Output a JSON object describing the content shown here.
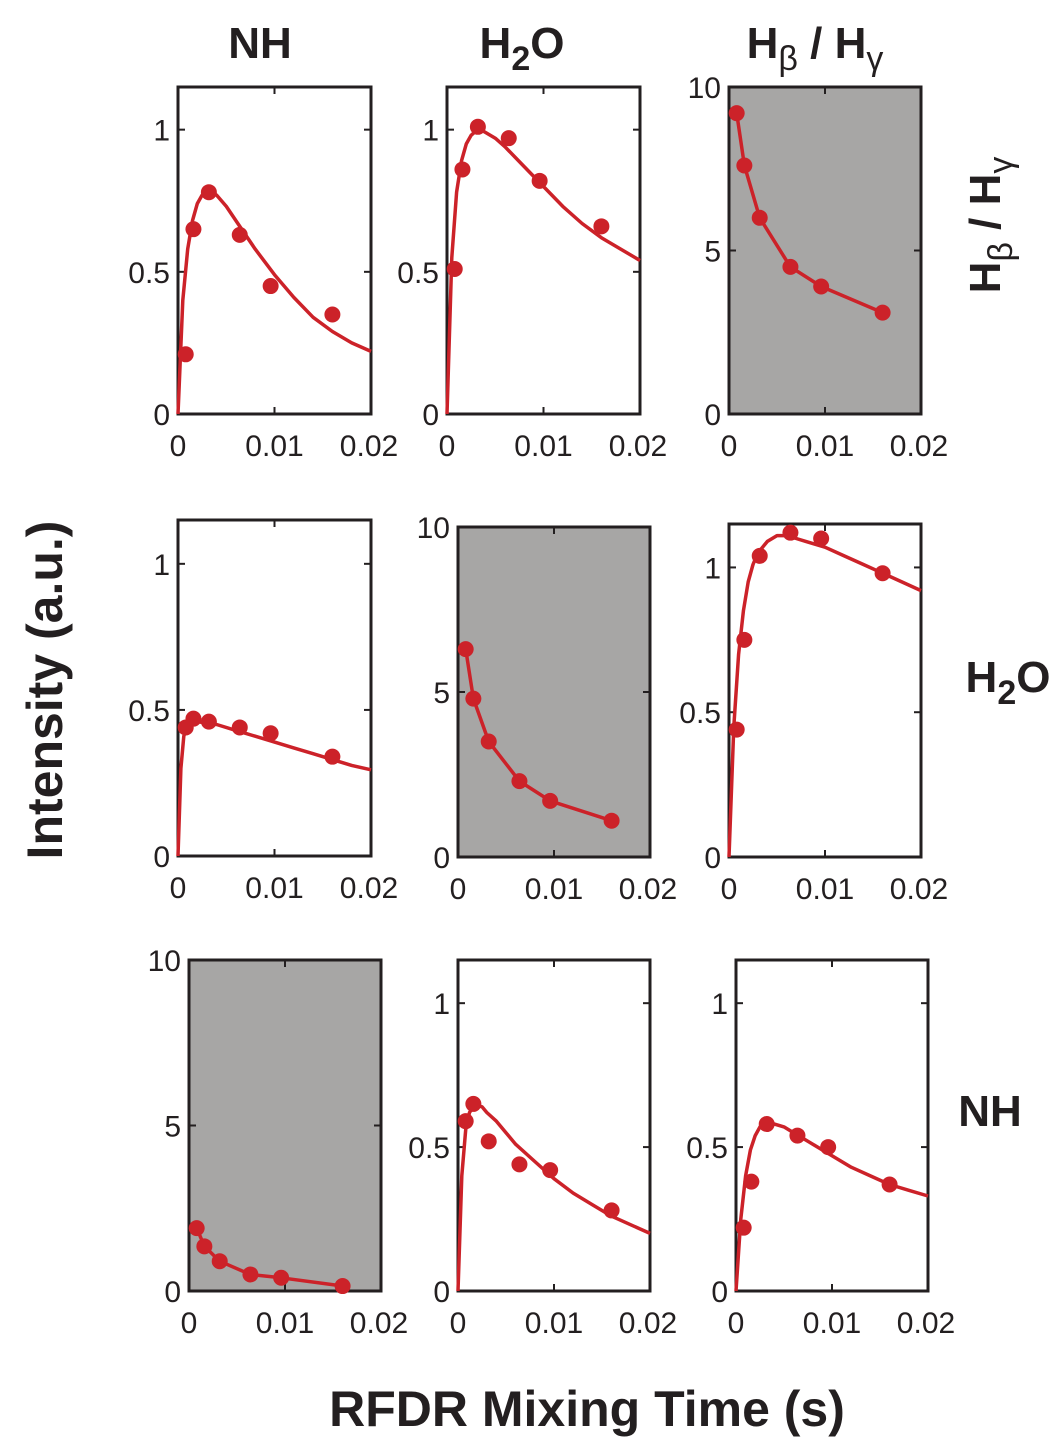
{
  "figure": {
    "xlabel": "RFDR Mixing Time (s)",
    "ylabel": "Intensity (a.u.)",
    "column_headers": [
      {
        "main": "NH",
        "sub": ""
      },
      {
        "main": "H",
        "sub": "2",
        "tail": "O"
      },
      {
        "main": "H",
        "sub": "β",
        "tail": " / H",
        "sub2": "γ"
      }
    ],
    "row_headers": [
      {
        "main": "H",
        "sub": "β",
        "tail": " / H",
        "sub2": "γ"
      },
      {
        "main": "H",
        "sub": "2",
        "tail": "O"
      },
      {
        "main": "NH",
        "sub": ""
      }
    ]
  },
  "colors": {
    "series": "#cc2229",
    "diagonal_fill": "#a7a6a5",
    "axis": "#231f20"
  },
  "chart_data": [
    {
      "row": 0,
      "col": 0,
      "type": "scatter",
      "diagonal": false,
      "xlim": [
        0,
        0.02
      ],
      "ylim": [
        0,
        1.15
      ],
      "xticks": [
        "0",
        "0.01",
        "0.02"
      ],
      "yticks": [
        "0",
        "0.5",
        "1"
      ],
      "x": [
        0.0008,
        0.0016,
        0.0032,
        0.0064,
        0.0096,
        0.016
      ],
      "y": [
        0.21,
        0.65,
        0.78,
        0.63,
        0.45,
        0.35
      ],
      "fit": {
        "x": [
          0,
          0.0005,
          0.001,
          0.0015,
          0.002,
          0.0025,
          0.003,
          0.0035,
          0.004,
          0.005,
          0.006,
          0.008,
          0.01,
          0.012,
          0.014,
          0.016,
          0.018,
          0.02
        ],
        "y": [
          0,
          0.4,
          0.58,
          0.68,
          0.74,
          0.77,
          0.78,
          0.78,
          0.77,
          0.73,
          0.68,
          0.58,
          0.49,
          0.41,
          0.34,
          0.29,
          0.25,
          0.22
        ]
      }
    },
    {
      "row": 0,
      "col": 1,
      "type": "scatter",
      "diagonal": false,
      "xlim": [
        0,
        0.02
      ],
      "ylim": [
        0,
        1.15
      ],
      "xticks": [
        "0",
        "0.01",
        "0.02"
      ],
      "yticks": [
        "0",
        "0.5",
        "1"
      ],
      "x": [
        0.0008,
        0.0016,
        0.0032,
        0.0064,
        0.0096,
        0.016
      ],
      "y": [
        0.51,
        0.86,
        1.01,
        0.97,
        0.82,
        0.66
      ],
      "fit": {
        "x": [
          0,
          0.0005,
          0.001,
          0.0015,
          0.002,
          0.0025,
          0.003,
          0.0035,
          0.004,
          0.005,
          0.006,
          0.008,
          0.01,
          0.012,
          0.014,
          0.016,
          0.018,
          0.02
        ],
        "y": [
          0,
          0.55,
          0.78,
          0.89,
          0.95,
          0.98,
          0.995,
          1.0,
          0.99,
          0.97,
          0.94,
          0.87,
          0.8,
          0.73,
          0.67,
          0.62,
          0.58,
          0.54
        ]
      }
    },
    {
      "row": 0,
      "col": 2,
      "type": "scatter",
      "diagonal": true,
      "xlim": [
        0,
        0.02
      ],
      "ylim": [
        0,
        10
      ],
      "xticks": [
        "0",
        "0.01",
        "0.02"
      ],
      "yticks": [
        "0",
        "5",
        "10"
      ],
      "x": [
        0.0008,
        0.0016,
        0.0032,
        0.0064,
        0.0096,
        0.016
      ],
      "y": [
        9.2,
        7.6,
        6.0,
        4.5,
        3.9,
        3.1
      ],
      "fit": {
        "x": [
          0.0008,
          0.0016,
          0.0032,
          0.0064,
          0.0096,
          0.016
        ],
        "y": [
          9.2,
          7.6,
          6.0,
          4.5,
          3.9,
          3.1
        ]
      }
    },
    {
      "row": 1,
      "col": 0,
      "type": "scatter",
      "diagonal": false,
      "xlim": [
        0,
        0.02
      ],
      "ylim": [
        0,
        1.15
      ],
      "xticks": [
        "0",
        "0.01",
        "0.02"
      ],
      "yticks": [
        "0",
        "0.5",
        "1"
      ],
      "x": [
        0.0008,
        0.0016,
        0.0032,
        0.0064,
        0.0096,
        0.016
      ],
      "y": [
        0.44,
        0.47,
        0.46,
        0.44,
        0.42,
        0.34
      ],
      "fit": {
        "x": [
          0,
          0.0003,
          0.0006,
          0.001,
          0.0015,
          0.002,
          0.003,
          0.004,
          0.006,
          0.008,
          0.01,
          0.012,
          0.014,
          0.016,
          0.018,
          0.02
        ],
        "y": [
          0,
          0.3,
          0.41,
          0.45,
          0.46,
          0.46,
          0.455,
          0.45,
          0.43,
          0.41,
          0.39,
          0.37,
          0.35,
          0.33,
          0.31,
          0.295
        ]
      }
    },
    {
      "row": 1,
      "col": 1,
      "type": "scatter",
      "diagonal": true,
      "xlim": [
        0,
        0.02
      ],
      "ylim": [
        0,
        10
      ],
      "xticks": [
        "0",
        "0.01",
        "0.02"
      ],
      "yticks": [
        "0",
        "5",
        "10"
      ],
      "x": [
        0.0008,
        0.0016,
        0.0032,
        0.0064,
        0.0096,
        0.016
      ],
      "y": [
        6.3,
        4.8,
        3.5,
        2.3,
        1.7,
        1.1
      ],
      "fit": {
        "x": [
          0.0008,
          0.0016,
          0.0032,
          0.0064,
          0.0096,
          0.016
        ],
        "y": [
          6.3,
          4.8,
          3.5,
          2.3,
          1.7,
          1.1
        ]
      }
    },
    {
      "row": 1,
      "col": 2,
      "type": "scatter",
      "diagonal": false,
      "xlim": [
        0,
        0.02
      ],
      "ylim": [
        0,
        1.15
      ],
      "xticks": [
        "0",
        "0.01",
        "0.02"
      ],
      "yticks": [
        "0",
        "0.5",
        "1"
      ],
      "x": [
        0.0008,
        0.0016,
        0.0032,
        0.0064,
        0.0096,
        0.016
      ],
      "y": [
        0.44,
        0.75,
        1.04,
        1.12,
        1.1,
        0.98
      ],
      "fit": {
        "x": [
          0,
          0.0005,
          0.001,
          0.0015,
          0.002,
          0.0025,
          0.003,
          0.004,
          0.005,
          0.006,
          0.007,
          0.008,
          0.01,
          0.012,
          0.014,
          0.016,
          0.018,
          0.02
        ],
        "y": [
          0,
          0.45,
          0.7,
          0.85,
          0.95,
          1.01,
          1.05,
          1.09,
          1.11,
          1.11,
          1.1,
          1.09,
          1.07,
          1.04,
          1.01,
          0.98,
          0.95,
          0.92
        ]
      }
    },
    {
      "row": 2,
      "col": 0,
      "type": "scatter",
      "diagonal": true,
      "xlim": [
        0,
        0.02
      ],
      "ylim": [
        0,
        10
      ],
      "xticks": [
        "0",
        "0.01",
        "0.02"
      ],
      "yticks": [
        "0",
        "5",
        "10"
      ],
      "x": [
        0.0008,
        0.0016,
        0.0032,
        0.0064,
        0.0096,
        0.016
      ],
      "y": [
        1.9,
        1.35,
        0.9,
        0.5,
        0.4,
        0.15
      ],
      "fit": {
        "x": [
          0.0008,
          0.0016,
          0.0032,
          0.0064,
          0.0096,
          0.016
        ],
        "y": [
          1.9,
          1.35,
          0.9,
          0.5,
          0.4,
          0.15
        ]
      }
    },
    {
      "row": 2,
      "col": 1,
      "type": "scatter",
      "diagonal": false,
      "xlim": [
        0,
        0.02
      ],
      "ylim": [
        0,
        1.15
      ],
      "xticks": [
        "0",
        "0.01",
        "0.02"
      ],
      "yticks": [
        "0",
        "0.5",
        "1"
      ],
      "x": [
        0.0008,
        0.0016,
        0.0032,
        0.0064,
        0.0096,
        0.016
      ],
      "y": [
        0.59,
        0.65,
        0.52,
        0.44,
        0.42,
        0.28
      ],
      "fit": {
        "x": [
          0,
          0.0004,
          0.0008,
          0.0012,
          0.0016,
          0.002,
          0.0025,
          0.003,
          0.004,
          0.005,
          0.006,
          0.008,
          0.01,
          0.012,
          0.014,
          0.016,
          0.018,
          0.02
        ],
        "y": [
          0,
          0.4,
          0.56,
          0.62,
          0.64,
          0.645,
          0.64,
          0.62,
          0.59,
          0.55,
          0.51,
          0.45,
          0.39,
          0.34,
          0.3,
          0.26,
          0.23,
          0.2
        ]
      }
    },
    {
      "row": 2,
      "col": 2,
      "type": "scatter",
      "diagonal": false,
      "xlim": [
        0,
        0.02
      ],
      "ylim": [
        0,
        1.15
      ],
      "xticks": [
        "0",
        "0.01",
        "0.02"
      ],
      "yticks": [
        "0",
        "0.5",
        "1"
      ],
      "x": [
        0.0008,
        0.0016,
        0.0032,
        0.0064,
        0.0096,
        0.016
      ],
      "y": [
        0.22,
        0.38,
        0.58,
        0.54,
        0.5,
        0.37
      ],
      "fit": {
        "x": [
          0,
          0.0005,
          0.001,
          0.0015,
          0.002,
          0.0025,
          0.003,
          0.0035,
          0.004,
          0.005,
          0.006,
          0.008,
          0.01,
          0.012,
          0.014,
          0.016,
          0.018,
          0.02
        ],
        "y": [
          0,
          0.25,
          0.4,
          0.49,
          0.54,
          0.57,
          0.58,
          0.585,
          0.58,
          0.57,
          0.55,
          0.51,
          0.47,
          0.43,
          0.4,
          0.37,
          0.35,
          0.33
        ]
      }
    }
  ]
}
